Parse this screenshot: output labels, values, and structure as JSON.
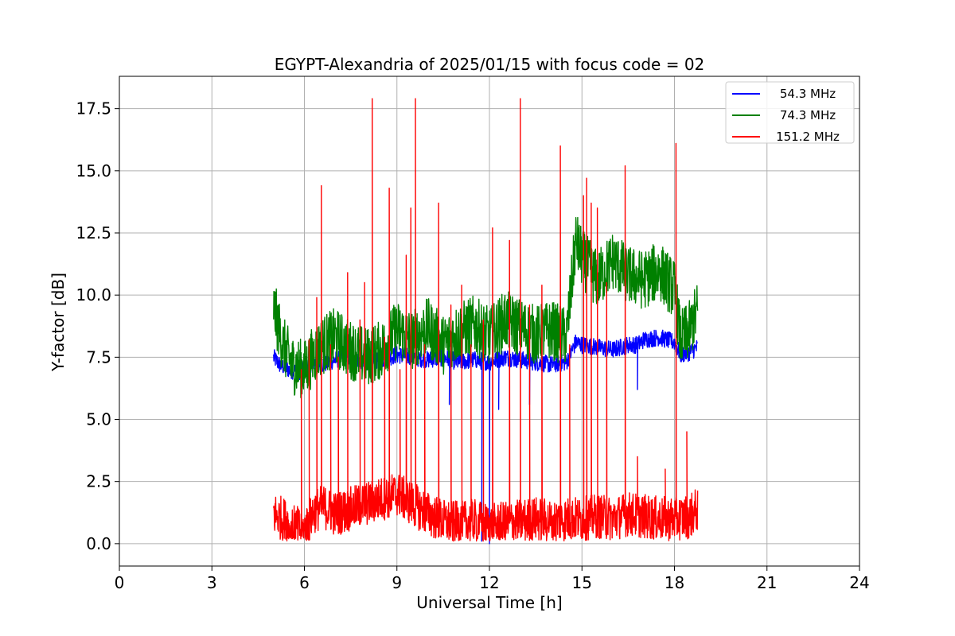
{
  "chart_data": {
    "type": "line",
    "title": "EGYPT-Alexandria of 2025/01/15 with focus code = 02",
    "xlabel": "Universal Time [h]",
    "ylabel": "Y-factor [dB]",
    "xlim": [
      0,
      24
    ],
    "ylim": [
      -0.9,
      18.8
    ],
    "xticks": [
      0,
      3,
      6,
      9,
      12,
      15,
      18,
      21,
      24
    ],
    "xtick_labels": [
      "0",
      "3",
      "6",
      "9",
      "12",
      "15",
      "18",
      "21",
      "24"
    ],
    "yticks": [
      0.0,
      2.5,
      5.0,
      7.5,
      10.0,
      12.5,
      15.0,
      17.5
    ],
    "ytick_labels": [
      "0.0",
      "2.5",
      "5.0",
      "7.5",
      "10.0",
      "12.5",
      "15.0",
      "17.5"
    ],
    "grid": true,
    "legend_position": "top-right",
    "series": [
      {
        "name": "54.3 MHz",
        "color": "#0000ff",
        "x": [
          5.0,
          5.2,
          5.5,
          5.8,
          6.0,
          6.3,
          6.6,
          7.0,
          7.5,
          8.0,
          8.5,
          9.0,
          9.5,
          10.0,
          10.5,
          11.0,
          11.5,
          12.0,
          12.5,
          13.0,
          13.5,
          14.0,
          14.5,
          14.8,
          15.0,
          15.5,
          16.0,
          16.5,
          16.8,
          17.0,
          17.5,
          18.0,
          18.2,
          18.5,
          18.75
        ],
        "values": [
          7.5,
          7.2,
          7.0,
          6.9,
          7.1,
          7.3,
          7.2,
          7.4,
          7.5,
          7.3,
          7.4,
          7.6,
          7.5,
          7.4,
          7.5,
          7.3,
          7.4,
          7.3,
          7.5,
          7.4,
          7.3,
          7.2,
          7.3,
          8.1,
          8.0,
          7.9,
          7.8,
          8.0,
          8.0,
          8.2,
          8.3,
          8.1,
          7.6,
          7.7,
          7.9
        ]
      },
      {
        "name": "74.3 MHz",
        "color": "#008000",
        "x": [
          5.0,
          5.1,
          5.3,
          5.6,
          6.0,
          6.3,
          6.6,
          7.0,
          7.5,
          8.0,
          8.5,
          9.0,
          9.5,
          10.0,
          10.5,
          11.0,
          11.5,
          12.0,
          12.5,
          13.0,
          13.5,
          14.0,
          14.5,
          14.8,
          15.0,
          15.5,
          16.0,
          16.5,
          17.0,
          17.5,
          18.0,
          18.2,
          18.5,
          18.75
        ],
        "values": [
          9.5,
          9.0,
          8.0,
          7.2,
          7.0,
          7.6,
          8.0,
          8.3,
          7.8,
          7.5,
          7.8,
          8.6,
          8.2,
          8.7,
          8.0,
          8.5,
          8.8,
          8.3,
          9.0,
          8.7,
          8.4,
          8.6,
          8.3,
          12.2,
          11.5,
          10.6,
          11.4,
          10.8,
          10.6,
          11.0,
          10.2,
          8.2,
          8.6,
          9.4
        ]
      },
      {
        "name": "151.2 MHz",
        "color": "#ff0000",
        "x": [
          5.0,
          5.3,
          5.6,
          6.0,
          6.3,
          6.6,
          7.0,
          7.5,
          8.0,
          8.5,
          9.0,
          9.5,
          10.0,
          10.5,
          11.0,
          11.5,
          12.0,
          12.5,
          13.0,
          13.5,
          14.0,
          14.5,
          15.0,
          15.5,
          16.0,
          16.5,
          17.0,
          17.5,
          18.0,
          18.5,
          18.75
        ],
        "values": [
          1.2,
          1.0,
          0.7,
          0.5,
          1.3,
          1.5,
          1.2,
          1.4,
          1.6,
          1.8,
          2.0,
          1.6,
          1.2,
          0.9,
          0.8,
          0.9,
          0.7,
          0.8,
          0.9,
          1.0,
          0.9,
          1.0,
          1.0,
          1.1,
          1.0,
          1.2,
          1.1,
          1.0,
          1.0,
          1.1,
          1.4
        ]
      }
    ],
    "spikes_151_2_MHz": [
      {
        "x": 5.9,
        "y": 7.0
      },
      {
        "x": 6.15,
        "y": 8.2
      },
      {
        "x": 6.4,
        "y": 9.9
      },
      {
        "x": 6.55,
        "y": 14.4
      },
      {
        "x": 6.85,
        "y": 8.0
      },
      {
        "x": 7.1,
        "y": 7.5
      },
      {
        "x": 7.4,
        "y": 10.9
      },
      {
        "x": 7.8,
        "y": 9.0
      },
      {
        "x": 7.95,
        "y": 10.5
      },
      {
        "x": 8.2,
        "y": 17.9
      },
      {
        "x": 8.6,
        "y": 8.3
      },
      {
        "x": 8.75,
        "y": 14.3
      },
      {
        "x": 9.1,
        "y": 7.0
      },
      {
        "x": 9.3,
        "y": 11.6
      },
      {
        "x": 9.45,
        "y": 13.5
      },
      {
        "x": 9.6,
        "y": 17.9
      },
      {
        "x": 9.9,
        "y": 8.0
      },
      {
        "x": 10.35,
        "y": 13.7
      },
      {
        "x": 10.75,
        "y": 9.6
      },
      {
        "x": 11.1,
        "y": 10.4
      },
      {
        "x": 11.4,
        "y": 8.0
      },
      {
        "x": 11.8,
        "y": 9.0
      },
      {
        "x": 12.1,
        "y": 12.7
      },
      {
        "x": 12.65,
        "y": 12.2
      },
      {
        "x": 13.0,
        "y": 17.9
      },
      {
        "x": 13.3,
        "y": 9.6
      },
      {
        "x": 13.7,
        "y": 10.4
      },
      {
        "x": 14.3,
        "y": 16.0
      },
      {
        "x": 14.6,
        "y": 8.0
      },
      {
        "x": 15.05,
        "y": 14.0
      },
      {
        "x": 15.15,
        "y": 14.7
      },
      {
        "x": 15.3,
        "y": 13.7
      },
      {
        "x": 15.5,
        "y": 13.5
      },
      {
        "x": 15.8,
        "y": 10.5
      },
      {
        "x": 16.4,
        "y": 15.2
      },
      {
        "x": 16.8,
        "y": 3.5
      },
      {
        "x": 17.7,
        "y": 3.0
      },
      {
        "x": 18.05,
        "y": 16.1
      },
      {
        "x": 18.4,
        "y": 4.5
      }
    ],
    "dips_54_3_MHz": [
      {
        "x": 10.7,
        "y": 5.6
      },
      {
        "x": 11.75,
        "y": 0.1
      },
      {
        "x": 12.0,
        "y": 0.0
      },
      {
        "x": 12.3,
        "y": 5.4
      },
      {
        "x": 13.3,
        "y": 5.6
      },
      {
        "x": 16.8,
        "y": 6.2
      }
    ]
  }
}
